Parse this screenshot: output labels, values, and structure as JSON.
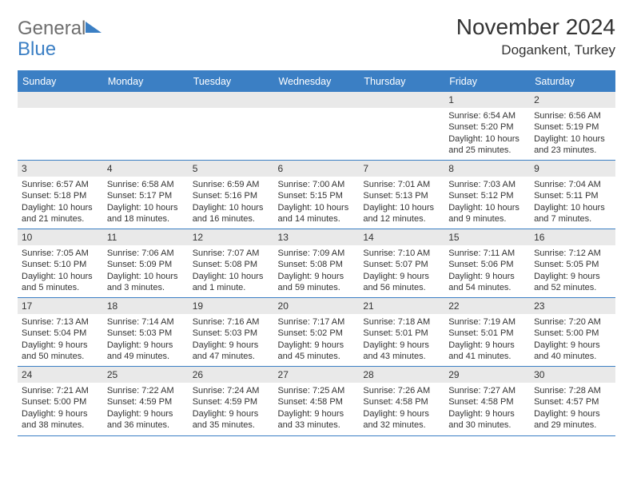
{
  "logo": {
    "text1": "General",
    "text2": "Blue"
  },
  "title": "November 2024",
  "location": "Dogankent, Turkey",
  "colors": {
    "accent": "#3b7fc4",
    "headerbg": "#3b7fc4",
    "daynumbg": "#e9e9e9",
    "text": "#333"
  },
  "dayHeaders": [
    "Sunday",
    "Monday",
    "Tuesday",
    "Wednesday",
    "Thursday",
    "Friday",
    "Saturday"
  ],
  "weeks": [
    [
      null,
      null,
      null,
      null,
      null,
      {
        "n": "1",
        "sunrise": "6:54 AM",
        "sunset": "5:20 PM",
        "daylight": "10 hours and 25 minutes."
      },
      {
        "n": "2",
        "sunrise": "6:56 AM",
        "sunset": "5:19 PM",
        "daylight": "10 hours and 23 minutes."
      }
    ],
    [
      {
        "n": "3",
        "sunrise": "6:57 AM",
        "sunset": "5:18 PM",
        "daylight": "10 hours and 21 minutes."
      },
      {
        "n": "4",
        "sunrise": "6:58 AM",
        "sunset": "5:17 PM",
        "daylight": "10 hours and 18 minutes."
      },
      {
        "n": "5",
        "sunrise": "6:59 AM",
        "sunset": "5:16 PM",
        "daylight": "10 hours and 16 minutes."
      },
      {
        "n": "6",
        "sunrise": "7:00 AM",
        "sunset": "5:15 PM",
        "daylight": "10 hours and 14 minutes."
      },
      {
        "n": "7",
        "sunrise": "7:01 AM",
        "sunset": "5:13 PM",
        "daylight": "10 hours and 12 minutes."
      },
      {
        "n": "8",
        "sunrise": "7:03 AM",
        "sunset": "5:12 PM",
        "daylight": "10 hours and 9 minutes."
      },
      {
        "n": "9",
        "sunrise": "7:04 AM",
        "sunset": "5:11 PM",
        "daylight": "10 hours and 7 minutes."
      }
    ],
    [
      {
        "n": "10",
        "sunrise": "7:05 AM",
        "sunset": "5:10 PM",
        "daylight": "10 hours and 5 minutes."
      },
      {
        "n": "11",
        "sunrise": "7:06 AM",
        "sunset": "5:09 PM",
        "daylight": "10 hours and 3 minutes."
      },
      {
        "n": "12",
        "sunrise": "7:07 AM",
        "sunset": "5:08 PM",
        "daylight": "10 hours and 1 minute."
      },
      {
        "n": "13",
        "sunrise": "7:09 AM",
        "sunset": "5:08 PM",
        "daylight": "9 hours and 59 minutes."
      },
      {
        "n": "14",
        "sunrise": "7:10 AM",
        "sunset": "5:07 PM",
        "daylight": "9 hours and 56 minutes."
      },
      {
        "n": "15",
        "sunrise": "7:11 AM",
        "sunset": "5:06 PM",
        "daylight": "9 hours and 54 minutes."
      },
      {
        "n": "16",
        "sunrise": "7:12 AM",
        "sunset": "5:05 PM",
        "daylight": "9 hours and 52 minutes."
      }
    ],
    [
      {
        "n": "17",
        "sunrise": "7:13 AM",
        "sunset": "5:04 PM",
        "daylight": "9 hours and 50 minutes."
      },
      {
        "n": "18",
        "sunrise": "7:14 AM",
        "sunset": "5:03 PM",
        "daylight": "9 hours and 49 minutes."
      },
      {
        "n": "19",
        "sunrise": "7:16 AM",
        "sunset": "5:03 PM",
        "daylight": "9 hours and 47 minutes."
      },
      {
        "n": "20",
        "sunrise": "7:17 AM",
        "sunset": "5:02 PM",
        "daylight": "9 hours and 45 minutes."
      },
      {
        "n": "21",
        "sunrise": "7:18 AM",
        "sunset": "5:01 PM",
        "daylight": "9 hours and 43 minutes."
      },
      {
        "n": "22",
        "sunrise": "7:19 AM",
        "sunset": "5:01 PM",
        "daylight": "9 hours and 41 minutes."
      },
      {
        "n": "23",
        "sunrise": "7:20 AM",
        "sunset": "5:00 PM",
        "daylight": "9 hours and 40 minutes."
      }
    ],
    [
      {
        "n": "24",
        "sunrise": "7:21 AM",
        "sunset": "5:00 PM",
        "daylight": "9 hours and 38 minutes."
      },
      {
        "n": "25",
        "sunrise": "7:22 AM",
        "sunset": "4:59 PM",
        "daylight": "9 hours and 36 minutes."
      },
      {
        "n": "26",
        "sunrise": "7:24 AM",
        "sunset": "4:59 PM",
        "daylight": "9 hours and 35 minutes."
      },
      {
        "n": "27",
        "sunrise": "7:25 AM",
        "sunset": "4:58 PM",
        "daylight": "9 hours and 33 minutes."
      },
      {
        "n": "28",
        "sunrise": "7:26 AM",
        "sunset": "4:58 PM",
        "daylight": "9 hours and 32 minutes."
      },
      {
        "n": "29",
        "sunrise": "7:27 AM",
        "sunset": "4:58 PM",
        "daylight": "9 hours and 30 minutes."
      },
      {
        "n": "30",
        "sunrise": "7:28 AM",
        "sunset": "4:57 PM",
        "daylight": "9 hours and 29 minutes."
      }
    ]
  ],
  "labels": {
    "sunrise": "Sunrise:",
    "sunset": "Sunset:",
    "daylight": "Daylight:"
  }
}
